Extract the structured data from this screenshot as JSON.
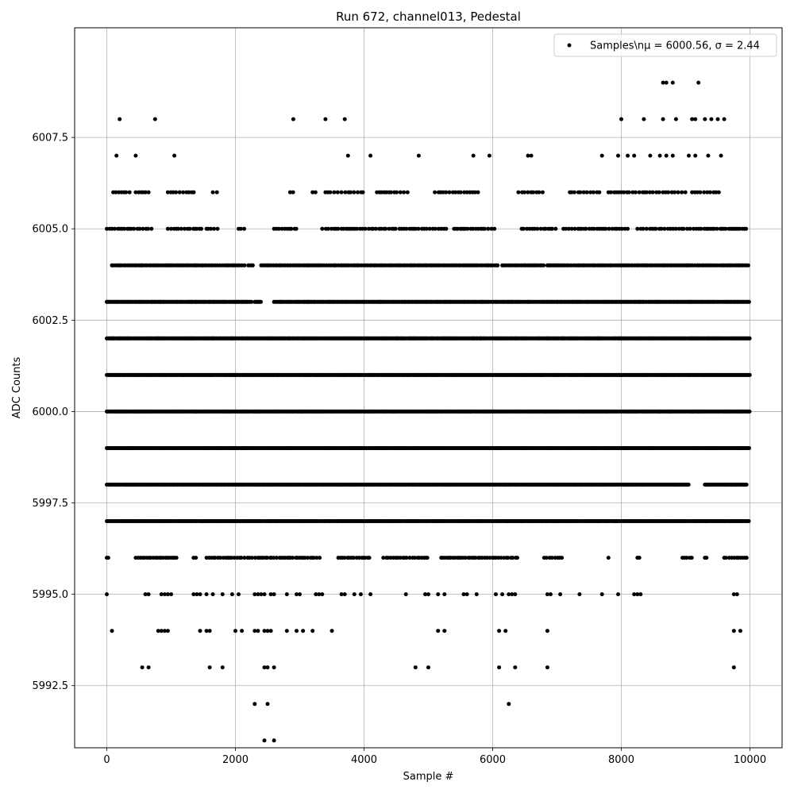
{
  "chart_data": {
    "type": "scatter",
    "title": "Run 672, channel013, Pedestal",
    "xlabel": "Sample #",
    "ylabel": "ADC Counts",
    "xlim": [
      -500,
      10500
    ],
    "ylim": [
      5990.8,
      6010.5
    ],
    "xticks": [
      0,
      2000,
      4000,
      6000,
      8000,
      10000
    ],
    "yticks": [
      5992.5,
      5995.0,
      5997.5,
      6000.0,
      6002.5,
      6005.0,
      6007.5
    ],
    "xtick_labels": [
      "0",
      "2000",
      "4000",
      "6000",
      "8000",
      "10000"
    ],
    "ytick_labels": [
      "5992.5",
      "5995.0",
      "5997.5",
      "6000.0",
      "6002.5",
      "6005.0",
      "6007.5"
    ],
    "grid": true,
    "legend": {
      "placement": "top-right",
      "entry": "Samples\\nμ = 6000.56, σ = 2.44"
    },
    "marker_color": "#000000",
    "series": [
      {
        "values_by_level": [
          {
            "y": 6009,
            "x": [
              8650,
              8700,
              8800,
              9200
            ]
          },
          {
            "y": 6008,
            "x": [
              200,
              750,
              2900,
              3400,
              3700,
              8000,
              8350,
              8650,
              8850,
              9100,
              9150,
              9300,
              9400,
              9500,
              9600
            ]
          },
          {
            "y": 6007,
            "x": [
              150,
              450,
              1050,
              3750,
              4100,
              4850,
              5700,
              5950,
              6550,
              6600,
              7700,
              7950,
              8100,
              8200,
              8450,
              8600,
              8700,
              8800,
              9050,
              9150,
              9350,
              9550
            ]
          },
          {
            "y": 6006,
            "levels": "sparse",
            "ranges": [
              [
                100,
                400
              ],
              [
                450,
                650
              ],
              [
                950,
                1400
              ],
              [
                1650,
                1750
              ],
              [
                2850,
                2900
              ],
              [
                3200,
                3250
              ],
              [
                3400,
                4000
              ],
              [
                4200,
                4700
              ],
              [
                5100,
                5800
              ],
              [
                6400,
                6800
              ],
              [
                7200,
                7700
              ],
              [
                7800,
                9000
              ],
              [
                9100,
                9550
              ]
            ],
            "step": 45
          },
          {
            "y": 6005,
            "ranges": [
              [
                0,
                700
              ],
              [
                950,
                1500
              ],
              [
                1550,
                1750
              ],
              [
                2050,
                2150
              ],
              [
                2600,
                2950
              ],
              [
                3350,
                4500
              ],
              [
                4550,
                5300
              ],
              [
                5400,
                6050
              ],
              [
                6450,
                7000
              ],
              [
                7100,
                8100
              ],
              [
                8250,
                9950
              ]
            ],
            "step": 40
          },
          {
            "y": 6004,
            "ranges": [
              [
                80,
                2150
              ],
              [
                2200,
                2300
              ],
              [
                2400,
                3350
              ],
              [
                3350,
                6100
              ],
              [
                6150,
                6800
              ],
              [
                6850,
                10000
              ]
            ],
            "step": 28
          },
          {
            "y": 6003,
            "ranges": [
              [
                0,
                2250
              ],
              [
                2300,
                2400
              ],
              [
                2600,
                10000
              ]
            ],
            "step": 18
          },
          {
            "y": 6002,
            "ranges": [
              [
                0,
                10000
              ]
            ],
            "step": 15
          },
          {
            "y": 6001,
            "ranges": [
              [
                0,
                10000
              ]
            ],
            "step": 13
          },
          {
            "y": 6000,
            "ranges": [
              [
                0,
                10000
              ]
            ],
            "step": 13
          },
          {
            "y": 5999,
            "ranges": [
              [
                0,
                10000
              ]
            ],
            "step": 14
          },
          {
            "y": 5998,
            "ranges": [
              [
                0,
                9050
              ],
              [
                9300,
                9950
              ]
            ],
            "step": 17
          },
          {
            "y": 5997,
            "ranges": [
              [
                0,
                10000
              ]
            ],
            "step": 18
          },
          {
            "y": 5996,
            "ranges": [
              [
                0,
                50
              ],
              [
                450,
                1100
              ],
              [
                1350,
                1400
              ],
              [
                1550,
                3350
              ],
              [
                3600,
                4100
              ],
              [
                4300,
                5000
              ],
              [
                5200,
                6400
              ],
              [
                6800,
                7100
              ],
              [
                7800,
                7800
              ],
              [
                8250,
                8300
              ],
              [
                8950,
                9100
              ],
              [
                9300,
                9350
              ],
              [
                9600,
                9950
              ]
            ],
            "step": 35
          },
          {
            "y": 5995,
            "x": [
              0,
              600,
              650,
              850,
              900,
              950,
              1000,
              1350,
              1400,
              1450,
              1550,
              1650,
              1800,
              1950,
              2050,
              2300,
              2350,
              2400,
              2450,
              2550,
              2600,
              2800,
              2950,
              3000,
              3250,
              3300,
              3350,
              3650,
              3700,
              3850,
              3950,
              4100,
              4650,
              4950,
              5000,
              5150,
              5250,
              5550,
              5600,
              5750,
              6050,
              6150,
              6250,
              6300,
              6350,
              6850,
              6900,
              7050,
              7350,
              7700,
              7950,
              8200,
              8250,
              8300,
              9750,
              9800
            ]
          },
          {
            "y": 5994,
            "x": [
              80,
              800,
              850,
              900,
              950,
              1450,
              1550,
              1600,
              2000,
              2100,
              2300,
              2350,
              2450,
              2500,
              2550,
              2800,
              2950,
              3050,
              3200,
              3500,
              5150,
              5250,
              6100,
              6200,
              6850,
              9750,
              9850
            ]
          },
          {
            "y": 5993,
            "x": [
              550,
              650,
              1600,
              1800,
              2450,
              2500,
              2600,
              4800,
              5000,
              6100,
              6350,
              6850,
              9750
            ]
          },
          {
            "y": 5992,
            "x": [
              2300,
              2500,
              6250
            ]
          },
          {
            "y": 5991,
            "x": [
              2450,
              2600
            ]
          }
        ]
      }
    ]
  }
}
